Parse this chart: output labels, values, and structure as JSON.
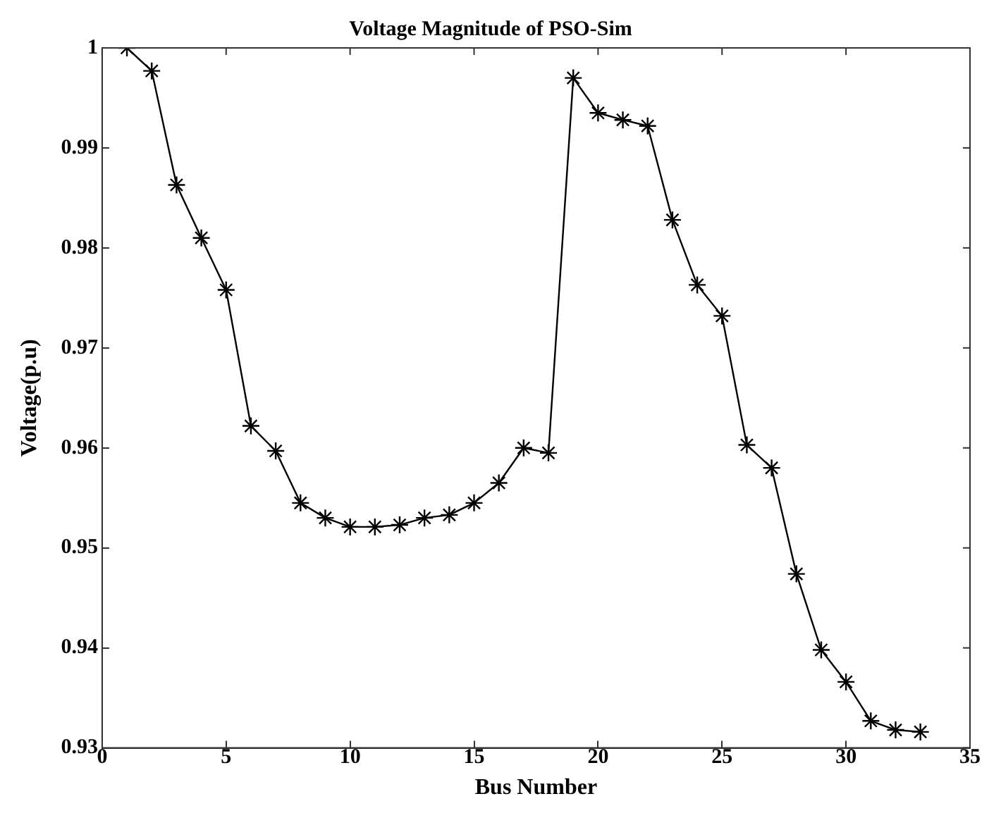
{
  "chart_data": {
    "type": "line",
    "title": "Voltage Magnitude of PSO-Sim",
    "xlabel": "Bus Number",
    "ylabel": "Voltage(p.u)",
    "x": [
      1,
      2,
      3,
      4,
      5,
      6,
      7,
      8,
      9,
      10,
      11,
      12,
      13,
      14,
      15,
      16,
      17,
      18,
      19,
      20,
      21,
      22,
      23,
      24,
      25,
      26,
      27,
      28,
      29,
      30,
      31,
      32,
      33
    ],
    "series": [
      {
        "color": "#000000",
        "values": [
          1.0,
          0.9977,
          0.9863,
          0.981,
          0.9758,
          0.9622,
          0.9597,
          0.9545,
          0.953,
          0.9521,
          0.9521,
          0.9523,
          0.953,
          0.9533,
          0.9545,
          0.9565,
          0.96,
          0.9595,
          0.997,
          0.9935,
          0.9928,
          0.9922,
          0.9828,
          0.9763,
          0.9732,
          0.9603,
          0.958,
          0.9474,
          0.9398,
          0.9366,
          0.9327,
          0.9318,
          0.9316
        ]
      }
    ],
    "xlim": [
      0,
      35
    ],
    "xticks": [
      0,
      5,
      10,
      15,
      20,
      25,
      30,
      35
    ],
    "ylim": [
      0.93,
      1
    ],
    "yticks": [
      0.93,
      0.94,
      0.95,
      0.96,
      0.97,
      0.98,
      0.99,
      1
    ],
    "grid": false,
    "legend": false,
    "marker": "cross",
    "line_style": "solid"
  }
}
